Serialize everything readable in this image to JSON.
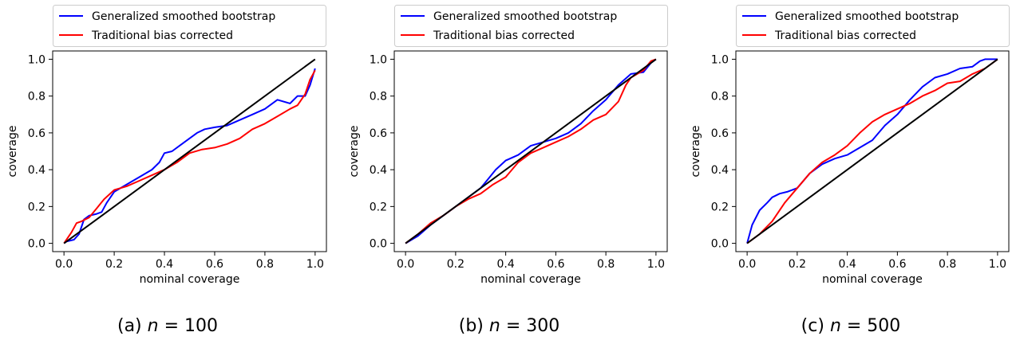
{
  "chart_data": [
    {
      "type": "line",
      "caption": "(a) n = 100",
      "caption_parts": {
        "prefix": "(a) ",
        "var": "n",
        "rest": " = 100"
      },
      "xlabel": "nominal coverage",
      "ylabel": "coverage",
      "xlim": [
        0.0,
        1.0
      ],
      "ylim": [
        0.0,
        1.0
      ],
      "xticks": [
        "0.0",
        "0.2",
        "0.4",
        "0.6",
        "0.8",
        "1.0"
      ],
      "yticks": [
        "0.0",
        "0.2",
        "0.4",
        "0.6",
        "0.8",
        "1.0"
      ],
      "legend_position": "above",
      "grid": false,
      "series": [
        {
          "name": "Generalized smoothed bootstrap",
          "color": "#0000ff",
          "x": [
            0,
            0.01,
            0.04,
            0.06,
            0.08,
            0.1,
            0.13,
            0.15,
            0.17,
            0.2,
            0.25,
            0.3,
            0.35,
            0.38,
            0.4,
            0.43,
            0.46,
            0.5,
            0.53,
            0.56,
            0.6,
            0.65,
            0.7,
            0.75,
            0.8,
            0.85,
            0.9,
            0.93,
            0.96,
            0.98,
            1.0
          ],
          "y": [
            0,
            0.01,
            0.02,
            0.05,
            0.13,
            0.15,
            0.16,
            0.17,
            0.22,
            0.28,
            0.32,
            0.36,
            0.4,
            0.44,
            0.49,
            0.5,
            0.53,
            0.57,
            0.6,
            0.62,
            0.63,
            0.64,
            0.67,
            0.7,
            0.73,
            0.78,
            0.76,
            0.8,
            0.8,
            0.86,
            0.95
          ]
        },
        {
          "name": "Traditional bias corrected",
          "color": "#ff0000",
          "x": [
            0,
            0.03,
            0.05,
            0.07,
            0.1,
            0.13,
            0.16,
            0.2,
            0.25,
            0.3,
            0.35,
            0.4,
            0.45,
            0.5,
            0.55,
            0.6,
            0.65,
            0.7,
            0.75,
            0.8,
            0.85,
            0.9,
            0.93,
            0.96,
            0.98,
            1.0
          ],
          "y": [
            0,
            0.06,
            0.11,
            0.12,
            0.14,
            0.19,
            0.24,
            0.29,
            0.31,
            0.34,
            0.37,
            0.4,
            0.44,
            0.49,
            0.51,
            0.52,
            0.54,
            0.57,
            0.62,
            0.65,
            0.69,
            0.73,
            0.75,
            0.81,
            0.89,
            0.94
          ]
        },
        {
          "name": "",
          "color": "#000000",
          "x": [
            0,
            1
          ],
          "y": [
            0,
            1
          ]
        }
      ]
    },
    {
      "type": "line",
      "caption": "(b) n = 300",
      "caption_parts": {
        "prefix": "(b) ",
        "var": "n",
        "rest": " = 300"
      },
      "xlabel": "nominal coverage",
      "ylabel": "coverage",
      "xlim": [
        0.0,
        1.0
      ],
      "ylim": [
        0.0,
        1.0
      ],
      "xticks": [
        "0.0",
        "0.2",
        "0.4",
        "0.6",
        "0.8",
        "1.0"
      ],
      "yticks": [
        "0.0",
        "0.2",
        "0.4",
        "0.6",
        "0.8",
        "1.0"
      ],
      "legend_position": "above",
      "grid": false,
      "series": [
        {
          "name": "Generalized smoothed bootstrap",
          "color": "#0000ff",
          "x": [
            0,
            0.05,
            0.1,
            0.15,
            0.2,
            0.25,
            0.3,
            0.33,
            0.36,
            0.4,
            0.45,
            0.5,
            0.55,
            0.6,
            0.65,
            0.7,
            0.75,
            0.8,
            0.85,
            0.9,
            0.95,
            0.98,
            1.0
          ],
          "y": [
            0,
            0.04,
            0.1,
            0.15,
            0.2,
            0.25,
            0.3,
            0.35,
            0.4,
            0.45,
            0.48,
            0.53,
            0.55,
            0.57,
            0.6,
            0.65,
            0.72,
            0.78,
            0.86,
            0.92,
            0.93,
            0.98,
            1.0
          ]
        },
        {
          "name": "Traditional bias corrected",
          "color": "#ff0000",
          "x": [
            0,
            0.05,
            0.1,
            0.15,
            0.2,
            0.25,
            0.3,
            0.35,
            0.4,
            0.45,
            0.5,
            0.55,
            0.6,
            0.65,
            0.7,
            0.75,
            0.8,
            0.85,
            0.88,
            0.9,
            0.95,
            0.98,
            1.0
          ],
          "y": [
            0,
            0.05,
            0.11,
            0.15,
            0.2,
            0.24,
            0.27,
            0.32,
            0.36,
            0.44,
            0.49,
            0.52,
            0.55,
            0.58,
            0.62,
            0.67,
            0.7,
            0.77,
            0.86,
            0.9,
            0.94,
            0.99,
            1.0
          ]
        },
        {
          "name": "",
          "color": "#000000",
          "x": [
            0,
            1
          ],
          "y": [
            0,
            1
          ]
        }
      ]
    },
    {
      "type": "line",
      "caption": "(c) n = 500",
      "caption_parts": {
        "prefix": "(c) ",
        "var": "n",
        "rest": " = 500"
      },
      "xlabel": "nominal coverage",
      "ylabel": "coverage",
      "xlim": [
        0.0,
        1.0
      ],
      "ylim": [
        0.0,
        1.0
      ],
      "xticks": [
        "0.0",
        "0.2",
        "0.4",
        "0.6",
        "0.8",
        "1.0"
      ],
      "yticks": [
        "0.0",
        "0.2",
        "0.4",
        "0.6",
        "0.8",
        "1.0"
      ],
      "legend_position": "above",
      "grid": false,
      "series": [
        {
          "name": "Generalized smoothed bootstrap",
          "color": "#0000ff",
          "x": [
            0,
            0.02,
            0.05,
            0.08,
            0.1,
            0.13,
            0.16,
            0.2,
            0.25,
            0.3,
            0.35,
            0.4,
            0.45,
            0.5,
            0.55,
            0.6,
            0.65,
            0.7,
            0.75,
            0.8,
            0.85,
            0.9,
            0.93,
            0.95,
            1.0
          ],
          "y": [
            0,
            0.1,
            0.18,
            0.22,
            0.25,
            0.27,
            0.28,
            0.3,
            0.38,
            0.43,
            0.46,
            0.48,
            0.52,
            0.56,
            0.64,
            0.7,
            0.78,
            0.85,
            0.9,
            0.92,
            0.95,
            0.96,
            0.99,
            1.0,
            1.0
          ]
        },
        {
          "name": "Traditional bias corrected",
          "color": "#ff0000",
          "x": [
            0,
            0.05,
            0.1,
            0.15,
            0.2,
            0.25,
            0.3,
            0.35,
            0.4,
            0.45,
            0.5,
            0.55,
            0.6,
            0.65,
            0.7,
            0.75,
            0.8,
            0.85,
            0.9,
            0.95,
            1.0
          ],
          "y": [
            0,
            0.05,
            0.12,
            0.22,
            0.3,
            0.38,
            0.44,
            0.48,
            0.53,
            0.6,
            0.66,
            0.7,
            0.73,
            0.76,
            0.8,
            0.83,
            0.87,
            0.88,
            0.92,
            0.95,
            1.0
          ]
        },
        {
          "name": "",
          "color": "#000000",
          "x": [
            0,
            1
          ],
          "y": [
            0,
            1
          ]
        }
      ]
    }
  ]
}
